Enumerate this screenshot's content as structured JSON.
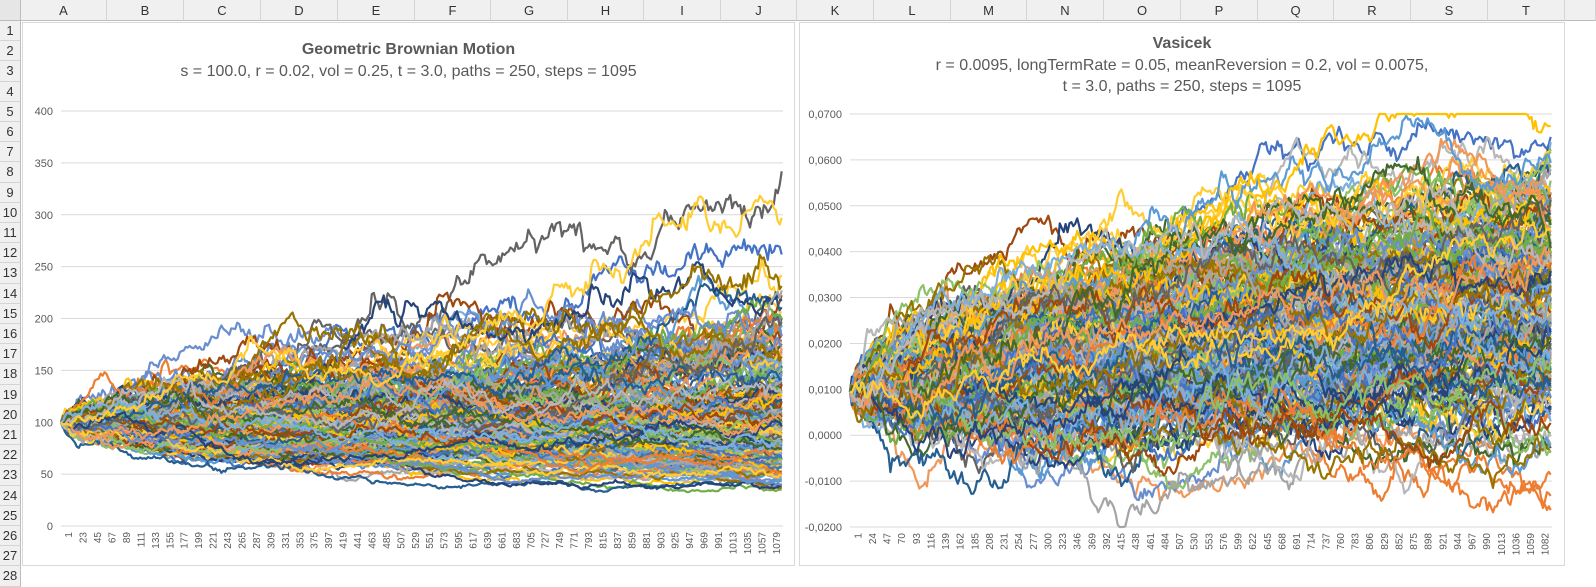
{
  "sheet": {
    "columns": [
      "A",
      "B",
      "C",
      "D",
      "E",
      "F",
      "G",
      "H",
      "I",
      "J",
      "K",
      "L",
      "M",
      "N",
      "O",
      "P",
      "Q",
      "R",
      "S",
      "T"
    ],
    "rows": [
      "1",
      "2",
      "3",
      "4",
      "5",
      "6",
      "7",
      "8",
      "9",
      "10",
      "11",
      "12",
      "13",
      "14",
      "15",
      "16",
      "17",
      "18",
      "19",
      "20",
      "21",
      "22",
      "23",
      "24",
      "25",
      "26",
      "27",
      "28"
    ]
  },
  "palette": [
    "#5b9bd5",
    "#ed7d31",
    "#a5a5a5",
    "#ffc000",
    "#4472c4",
    "#70ad47",
    "#255e91",
    "#9e480e",
    "#636363",
    "#997300",
    "#264478",
    "#43682b",
    "#7cafdd",
    "#f1975a",
    "#b7b7b7",
    "#ffcd33",
    "#698ed0",
    "#8cc168"
  ],
  "chart_data": [
    {
      "type": "line",
      "title": "Geometric Brownian Motion",
      "subtitle_lines": [
        "s = 100.0, r = 0.02, vol = 0.25, t = 3.0, paths = 250, steps = 1095"
      ],
      "model": "gbm",
      "params": {
        "s": 100.0,
        "r": 0.02,
        "vol": 0.25,
        "t": 3.0,
        "paths": 250,
        "steps": 1095
      },
      "ylim": [
        0,
        400
      ],
      "y_ticks": [
        "0",
        "50",
        "100",
        "150",
        "200",
        "250",
        "300",
        "350",
        "400"
      ],
      "x_tick_labels": [
        "1",
        "23",
        "45",
        "67",
        "89",
        "111",
        "133",
        "155",
        "177",
        "199",
        "221",
        "243",
        "265",
        "287",
        "309",
        "331",
        "353",
        "375",
        "397",
        "419",
        "441",
        "463",
        "485",
        "507",
        "529",
        "551",
        "573",
        "595",
        "617",
        "639",
        "661",
        "683",
        "705",
        "727",
        "749",
        "771",
        "793",
        "815",
        "837",
        "859",
        "881",
        "903",
        "925",
        "947",
        "969",
        "991",
        "1013",
        "1035",
        "1057",
        "1079"
      ],
      "grid": true
    },
    {
      "type": "line",
      "title": "Vasicek",
      "subtitle_lines": [
        "r = 0.0095, longTermRate = 0.05, meanReversion = 0.2, vol = 0.0075,",
        "t = 3.0, paths = 250, steps = 1095"
      ],
      "model": "vasicek",
      "params": {
        "r": 0.0095,
        "longTermRate": 0.05,
        "meanReversion": 0.2,
        "vol": 0.0075,
        "t": 3.0,
        "paths": 250,
        "steps": 1095
      },
      "ylim": [
        -0.02,
        0.07
      ],
      "y_ticks": [
        "-0,0200",
        "-0,0100",
        "0,0000",
        "0,0100",
        "0,0200",
        "0,0300",
        "0,0400",
        "0,0500",
        "0,0600",
        "0,0700"
      ],
      "x_tick_labels": [
        "1",
        "24",
        "47",
        "70",
        "93",
        "116",
        "139",
        "162",
        "185",
        "208",
        "231",
        "254",
        "277",
        "300",
        "323",
        "346",
        "369",
        "392",
        "415",
        "438",
        "461",
        "484",
        "507",
        "530",
        "553",
        "576",
        "599",
        "622",
        "645",
        "668",
        "691",
        "714",
        "737",
        "760",
        "783",
        "806",
        "829",
        "852",
        "875",
        "898",
        "921",
        "944",
        "967",
        "990",
        "1013",
        "1036",
        "1059",
        "1082"
      ],
      "grid": true
    }
  ]
}
